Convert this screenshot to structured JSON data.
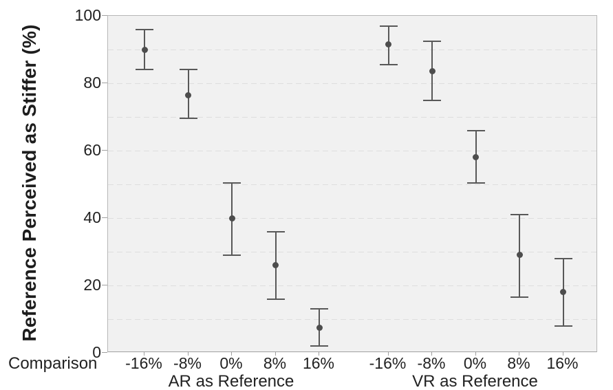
{
  "chart_data": {
    "type": "scatter",
    "title": "",
    "ylabel": "Reference Perceived as Stiffer (%)",
    "xlabel": "Comparison",
    "ylim": [
      0,
      100
    ],
    "yticks": [
      0,
      20,
      40,
      60,
      80,
      100
    ],
    "grid": {
      "step": 10,
      "style": "dashed",
      "orientation": "horizontal"
    },
    "legend": "none",
    "categories": [
      "-16%",
      "-8%",
      "0%",
      "8%",
      "16%"
    ],
    "series": [
      {
        "name": "AR as Reference",
        "means": [
          90,
          76.5,
          40,
          26,
          7.5
        ],
        "ci_low": [
          84,
          69.5,
          29,
          16,
          2
        ],
        "ci_high": [
          96,
          84,
          50.5,
          36,
          13
        ]
      },
      {
        "name": "VR as Reference",
        "means": [
          91.5,
          83.5,
          58,
          29,
          18
        ],
        "ci_low": [
          85.5,
          75,
          50.5,
          16.5,
          8
        ],
        "ci_high": [
          97,
          92.5,
          66,
          41,
          28
        ]
      }
    ],
    "colors": {
      "point": "#4d4d4d",
      "error_bar": "#585858",
      "plot_background": "#f1f1f1",
      "gridline": "#dedede",
      "text": "#222222"
    }
  }
}
